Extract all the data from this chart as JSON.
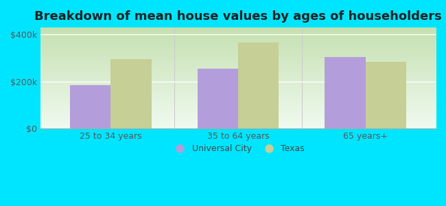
{
  "title": "Breakdown of mean house values by ages of householders",
  "categories": [
    "25 to 34 years",
    "35 to 64 years",
    "65 years+"
  ],
  "universal_city": [
    185000,
    255000,
    305000
  ],
  "texas": [
    295000,
    365000,
    285000
  ],
  "universal_city_color": "#b39ddb",
  "texas_color": "#c5cf96",
  "background_color": "#00e5ff",
  "ylim": [
    0,
    430000
  ],
  "yticks": [
    0,
    200000,
    400000
  ],
  "ytick_labels": [
    "$0",
    "$200k",
    "$400k"
  ],
  "legend_labels": [
    "Universal City",
    "Texas"
  ],
  "bar_width": 0.32,
  "title_fontsize": 13,
  "tick_fontsize": 9,
  "legend_fontsize": 9,
  "plot_bg_left_top": "#c8e6c9",
  "plot_bg_right_bottom": "#f5fff5"
}
